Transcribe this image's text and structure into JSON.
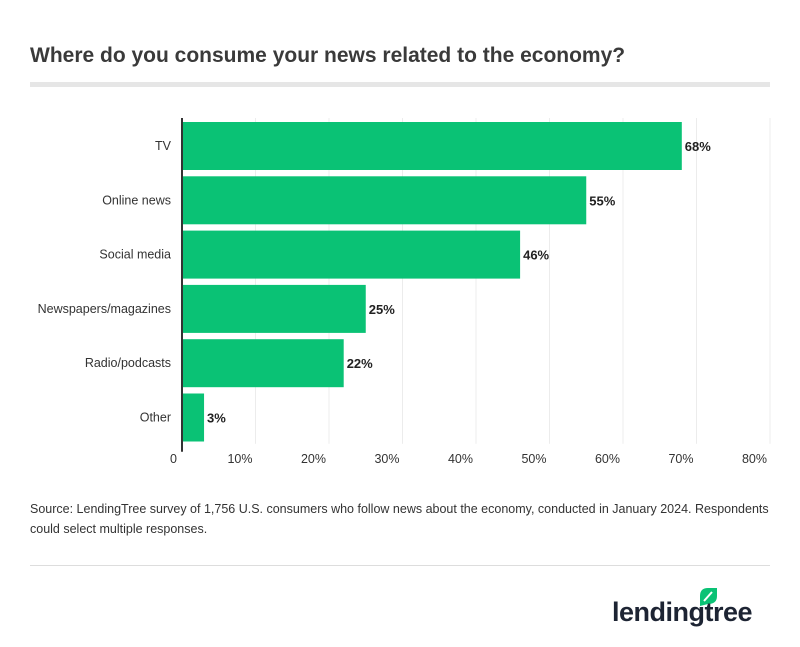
{
  "title": "Where do you consume your news related to the economy?",
  "source": "Source: LendingTree survey of 1,756 U.S. consumers who follow news about the economy, conducted in January 2024. Respondents could select multiple responses.",
  "logo_text": "lendingtree",
  "colors": {
    "bar": "#0ac275",
    "logo_leaf": "#0ac275",
    "text": "#3a3a3a"
  },
  "chart_data": {
    "type": "bar",
    "orientation": "horizontal",
    "categories": [
      "TV",
      "Online news",
      "Social media",
      "Newspapers/magazines",
      "Radio/podcasts",
      "Other"
    ],
    "values": [
      68,
      55,
      46,
      25,
      22,
      3
    ],
    "data_labels": [
      "68%",
      "55%",
      "46%",
      "25%",
      "22%",
      "3%"
    ],
    "xlim": [
      0,
      80
    ],
    "ticks": [
      0,
      10,
      20,
      30,
      40,
      50,
      60,
      70,
      80
    ],
    "tick_labels": [
      "0",
      "10%",
      "20%",
      "30%",
      "40%",
      "50%",
      "60%",
      "70%",
      "80%"
    ],
    "grid": true,
    "xlabel": "",
    "ylabel": ""
  }
}
